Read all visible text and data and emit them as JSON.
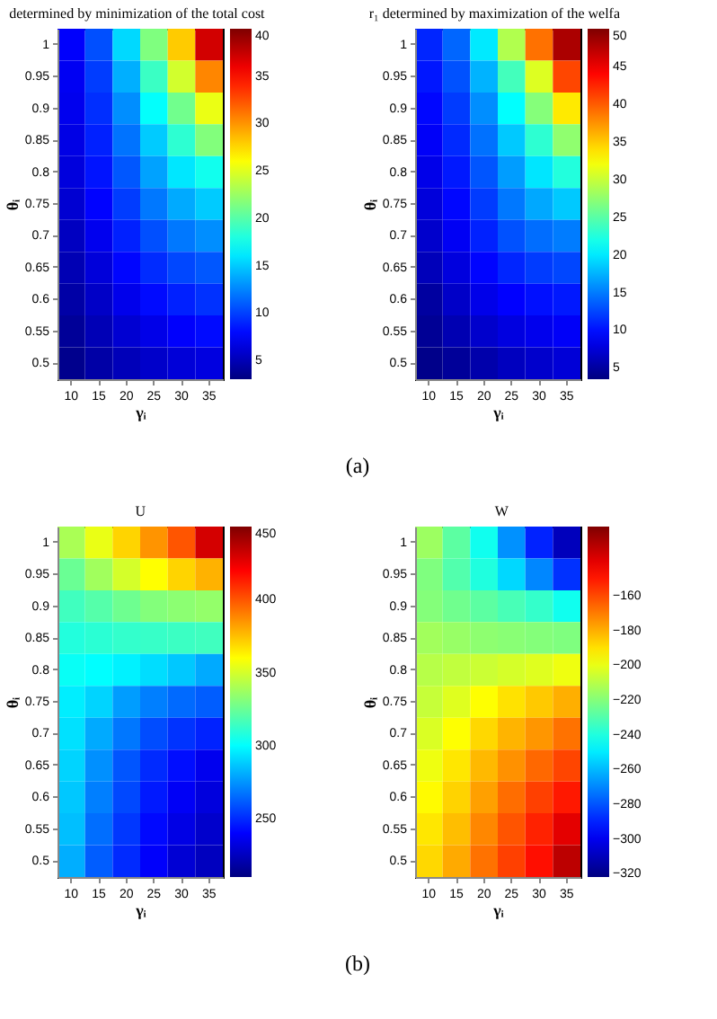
{
  "chart_data": [
    {
      "type": "heatmap",
      "title": "determined by minimization of the total cost",
      "xlabel": "γᵢ",
      "ylabel": "θᵢ",
      "categories": [
        "10",
        "15",
        "20",
        "25",
        "30",
        "35"
      ],
      "y_categories": [
        "1",
        "0.95",
        "0.9",
        "0.85",
        "0.8",
        "0.75",
        "0.7",
        "0.65",
        "0.6",
        "0.55",
        "0.5"
      ],
      "cells": [
        [
          7.5,
          10.5,
          15.5,
          21.5,
          28,
          37
        ],
        [
          7.2,
          9.8,
          14,
          19,
          24.5,
          30.5
        ],
        [
          7,
          9.3,
          12.8,
          17,
          21,
          25.4
        ],
        [
          6.7,
          8.8,
          11.8,
          15,
          18.5,
          21.6
        ],
        [
          6.4,
          8.3,
          10.8,
          13.5,
          16,
          17.5
        ],
        [
          6,
          7.7,
          9.8,
          12,
          13.8,
          15
        ],
        [
          5.4,
          7,
          8.8,
          10.5,
          12,
          12.8
        ],
        [
          4.9,
          6.3,
          7.8,
          9.2,
          10.2,
          10.8
        ],
        [
          4.4,
          5.6,
          6.9,
          8,
          8.8,
          9.4
        ],
        [
          3.9,
          5,
          6,
          6.8,
          7.5,
          8
        ],
        [
          3.5,
          4.4,
          5.1,
          5.7,
          6.2,
          6.5
        ]
      ],
      "clim": [
        3,
        40
      ],
      "cticks": [
        5,
        10,
        15,
        20,
        25,
        30,
        35,
        40
      ],
      "annotations": [
        "(a)"
      ]
    },
    {
      "type": "heatmap",
      "title": "r₁ determined by maximization of the welfa",
      "xlabel": "γᵢ",
      "ylabel": "θᵢ",
      "categories": [
        "10",
        "15",
        "20",
        "25",
        "30",
        "35"
      ],
      "y_categories": [
        "1",
        "0.95",
        "0.9",
        "0.85",
        "0.8",
        "0.75",
        "0.7",
        "0.65",
        "0.6",
        "0.55",
        "0.5"
      ],
      "cells": [
        [
          11,
          14,
          20,
          29,
          39,
          48
        ],
        [
          10.3,
          13,
          17.5,
          24,
          31,
          41
        ],
        [
          9.6,
          12,
          15.8,
          21,
          27,
          33.5
        ],
        [
          9,
          11.2,
          14.5,
          18.5,
          23,
          27.5
        ],
        [
          8.3,
          10.4,
          13.2,
          16.5,
          19.8,
          22.5
        ],
        [
          7.7,
          9.6,
          12,
          14.8,
          17,
          18.5
        ],
        [
          7,
          8.8,
          10.8,
          13,
          14.3,
          15
        ],
        [
          6.2,
          7.8,
          9.5,
          11,
          12,
          12.5
        ],
        [
          5,
          6.8,
          8.3,
          9.3,
          10,
          10.4
        ],
        [
          4.5,
          5.8,
          7,
          7.9,
          8.5,
          9
        ],
        [
          4,
          4.7,
          5.5,
          6.4,
          7,
          7.5
        ]
      ],
      "clim": [
        3.5,
        50
      ],
      "cticks": [
        5,
        10,
        15,
        20,
        25,
        30,
        35,
        40,
        45,
        50
      ]
    },
    {
      "type": "heatmap",
      "title": "U",
      "xlabel": "γᵢ",
      "ylabel": "θᵢ",
      "categories": [
        "10",
        "15",
        "20",
        "25",
        "30",
        "35"
      ],
      "y_categories": [
        "1",
        "0.95",
        "0.9",
        "0.85",
        "0.8",
        "0.75",
        "0.7",
        "0.65",
        "0.6",
        "0.55",
        "0.5"
      ],
      "cells": [
        [
          340,
          355,
          370,
          385,
          400,
          430
        ],
        [
          325,
          338,
          350,
          360,
          370,
          378
        ],
        [
          315,
          320,
          326,
          331,
          333,
          335
        ],
        [
          308,
          310,
          312,
          313,
          314,
          315
        ],
        [
          302,
          300,
          297,
          292,
          287,
          280
        ],
        [
          296,
          290,
          277,
          270,
          265,
          262
        ],
        [
          293,
          280,
          268,
          258,
          252,
          248
        ],
        [
          290,
          274,
          260,
          250,
          243,
          236
        ],
        [
          287,
          270,
          257,
          246,
          238,
          232
        ],
        [
          285,
          266,
          253,
          242,
          234,
          228
        ],
        [
          281,
          262,
          250,
          239,
          230,
          225
        ]
      ],
      "clim": [
        210,
        450
      ],
      "cticks": [
        250,
        300,
        350,
        400,
        450
      ],
      "annotations": [
        "(b)"
      ]
    },
    {
      "type": "heatmap",
      "title": "W",
      "xlabel": "γᵢ",
      "ylabel": "θᵢ",
      "categories": [
        "10",
        "15",
        "20",
        "25",
        "30",
        "35"
      ],
      "y_categories": [
        "1",
        "0.95",
        "0.9",
        "0.85",
        "0.8",
        "0.75",
        "0.7",
        "0.65",
        "0.6",
        "0.55",
        "0.5"
      ],
      "cells": [
        [
          -215,
          -228,
          -243,
          -268,
          -290,
          -310
        ],
        [
          -221,
          -230,
          -240,
          -254,
          -270,
          -287
        ],
        [
          -220,
          -224,
          -228,
          -232,
          -236,
          -243
        ],
        [
          -214,
          -216,
          -218,
          -219,
          -220,
          -221
        ],
        [
          -210,
          -208,
          -206,
          -204,
          -202,
          -199
        ],
        [
          -207,
          -202,
          -196,
          -190,
          -185,
          -180
        ],
        [
          -203,
          -196,
          -188,
          -181,
          -175,
          -168
        ],
        [
          -199,
          -191,
          -182,
          -174,
          -166,
          -159
        ],
        [
          -195,
          -187,
          -177,
          -167,
          -158,
          -150
        ],
        [
          -191,
          -183,
          -172,
          -162,
          -152,
          -140
        ],
        [
          -188,
          -179,
          -168,
          -158,
          -148,
          -132
        ]
      ],
      "clim": [
        -322,
        -120
      ],
      "cticks": [
        -320,
        -300,
        -280,
        -260,
        -240,
        -220,
        -200,
        -180,
        -160
      ]
    }
  ]
}
